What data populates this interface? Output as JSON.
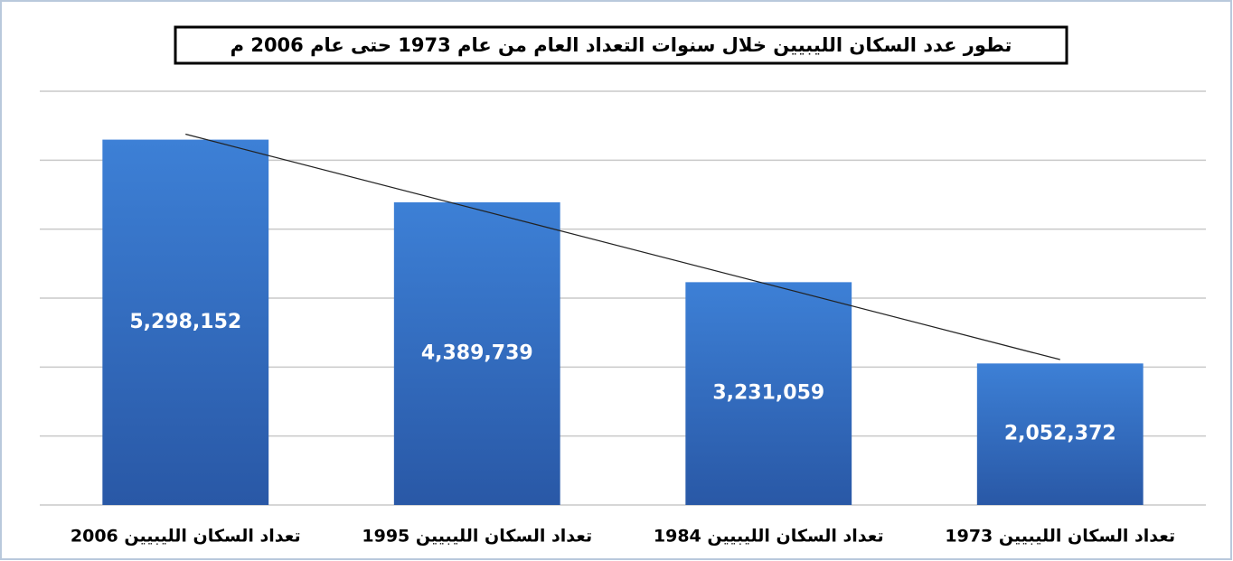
{
  "chart_data": {
    "type": "bar",
    "title": "تطور عدد السكان الليبيين خلال سنوات التعداد العام من عام 1973 حتى عام 2006 م",
    "categories": [
      "تعداد السكان الليبيين 2006",
      "تعداد السكان الليبيين 1995",
      "تعداد السكان الليبيين 1984",
      "تعداد السكان الليبيين 1973"
    ],
    "values": [
      5298152,
      4389739,
      3231059,
      2052372
    ],
    "value_labels": [
      "5,298,152",
      "4,389,739",
      "3,231,059",
      "2,052,372"
    ],
    "color": "#3574c9",
    "ylim": [
      0,
      6000000
    ],
    "yticks": [
      0,
      1000000,
      2000000,
      3000000,
      4000000,
      5000000,
      6000000
    ],
    "grid": true,
    "trendline": "linear"
  }
}
